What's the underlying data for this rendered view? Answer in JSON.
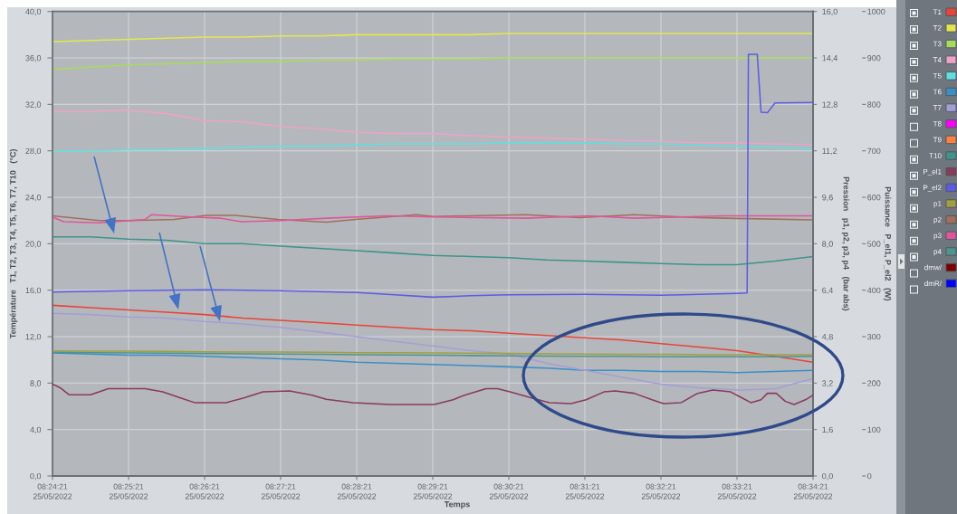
{
  "chart_data": {
    "type": "line",
    "xlabel": "Temps",
    "ylabel": "Température   T1, T2, T3, T4, T5, T6, T7, T10   (°C)",
    "y2label": "Pression   p1, p2, p3, p4   (bar abs)",
    "y3label": "Puissance   P_el1, P_el2   (W)",
    "xlim": [
      "2022-05-25T08:24:21",
      "2022-05-25T08:34:21"
    ],
    "xticks": [
      {
        "value": "2022-05-25T08:24:21",
        "label": "08:24:21\n25/05/2022"
      },
      {
        "value": "2022-05-25T08:25:21",
        "label": "08:25:21\n25/05/2022"
      },
      {
        "value": "2022-05-25T08:26:21",
        "label": "08:26:21\n25/05/2022"
      },
      {
        "value": "2022-05-25T08:27:21",
        "label": "08:27:21\n25/05/2022"
      },
      {
        "value": "2022-05-25T08:28:21",
        "label": "08:28:21\n25/05/2022"
      },
      {
        "value": "2022-05-25T08:29:21",
        "label": "08:29:21\n25/05/2022"
      },
      {
        "value": "2022-05-25T08:30:21",
        "label": "08:30:21\n25/05/2022"
      },
      {
        "value": "2022-05-25T08:31:21",
        "label": "08:31:21\n25/05/2022"
      },
      {
        "value": "2022-05-25T08:32:21",
        "label": "08:32:21\n25/05/2022"
      },
      {
        "value": "2022-05-25T08:33:21",
        "label": "08:33:21\n25/05/2022"
      },
      {
        "value": "2022-05-25T08:34:21",
        "label": "08:34:21\n25/05/2022"
      }
    ],
    "ylim": [
      0,
      40
    ],
    "yticks": [
      {
        "value": 0,
        "label": "0,0"
      },
      {
        "value": 4,
        "label": "4,0"
      },
      {
        "value": 8,
        "label": "8,0"
      },
      {
        "value": 12,
        "label": "12,0"
      },
      {
        "value": 16,
        "label": "16,0"
      },
      {
        "value": 20,
        "label": "20,0"
      },
      {
        "value": 24,
        "label": "24,0"
      },
      {
        "value": 28,
        "label": "28,0"
      },
      {
        "value": 32,
        "label": "32,0"
      },
      {
        "value": 36,
        "label": "36,0"
      },
      {
        "value": 40,
        "label": "40,0"
      }
    ],
    "y2lim": [
      0,
      16
    ],
    "y2ticks": [
      {
        "value": 0,
        "label": "0,0"
      },
      {
        "value": 1.6,
        "label": "1,6"
      },
      {
        "value": 3.2,
        "label": "3,2"
      },
      {
        "value": 4.8,
        "label": "4,8"
      },
      {
        "value": 6.4,
        "label": "6,4"
      },
      {
        "value": 8,
        "label": "8,0"
      },
      {
        "value": 9.6,
        "label": "9,6"
      },
      {
        "value": 11.2,
        "label": "11,2"
      },
      {
        "value": 12.8,
        "label": "12,8"
      },
      {
        "value": 14.4,
        "label": "14,4"
      },
      {
        "value": 16,
        "label": "16,0"
      }
    ],
    "y3lim": [
      0,
      1000
    ],
    "y3ticks": [
      0,
      100,
      200,
      300,
      400,
      500,
      600,
      700,
      800,
      900,
      1000
    ],
    "grid": true,
    "legend": "right",
    "x": [
      "2022-05-25T08:24:21",
      "2022-05-25T08:24:51",
      "2022-05-25T08:25:21",
      "2022-05-25T08:25:51",
      "2022-05-25T08:26:21",
      "2022-05-25T08:26:51",
      "2022-05-25T08:27:21",
      "2022-05-25T08:27:51",
      "2022-05-25T08:28:21",
      "2022-05-25T08:28:51",
      "2022-05-25T08:29:21",
      "2022-05-25T08:29:51",
      "2022-05-25T08:30:21",
      "2022-05-25T08:30:51",
      "2022-05-25T08:31:21",
      "2022-05-25T08:31:51",
      "2022-05-25T08:32:21",
      "2022-05-25T08:32:51",
      "2022-05-25T08:33:21",
      "2022-05-25T08:33:51",
      "2022-05-25T08:34:21"
    ],
    "series": [
      {
        "name": "T1",
        "color": "#e8443a",
        "values": [
          14.7,
          14.5,
          14.3,
          14.1,
          13.9,
          13.6,
          13.4,
          13.2,
          13.0,
          12.8,
          12.6,
          12.5,
          12.3,
          12.1,
          11.9,
          11.7,
          11.4,
          11.1,
          10.8,
          10.3,
          9.8
        ]
      },
      {
        "name": "T2",
        "color": "#e6e64c",
        "values": [
          37.4,
          37.5,
          37.6,
          37.7,
          37.8,
          37.8,
          37.9,
          37.9,
          38.0,
          38.0,
          38.0,
          38.0,
          38.1,
          38.1,
          38.1,
          38.1,
          38.1,
          38.1,
          38.1,
          38.1,
          38.1
        ]
      },
      {
        "name": "T3",
        "color": "#a6dc58",
        "values": [
          35.0,
          35.2,
          35.4,
          35.5,
          35.6,
          35.7,
          35.7,
          35.8,
          35.8,
          35.9,
          35.9,
          35.9,
          36.0,
          36.0,
          36.0,
          36.0,
          36.0,
          36.0,
          36.0,
          36.0,
          36.0
        ]
      },
      {
        "name": "T4",
        "color": "#eea2c6",
        "values": [
          31.4,
          31.4,
          31.5,
          31.2,
          30.6,
          30.5,
          30.1,
          29.9,
          29.6,
          29.5,
          29.5,
          29.3,
          29.2,
          29.1,
          29.0,
          28.9,
          28.8,
          28.7,
          28.7,
          28.6,
          28.5
        ]
      },
      {
        "name": "T5",
        "color": "#5fe0e0",
        "values": [
          28.0,
          28.0,
          28.1,
          28.1,
          28.2,
          28.3,
          28.4,
          28.4,
          28.5,
          28.6,
          28.6,
          28.6,
          28.7,
          28.7,
          28.7,
          28.6,
          28.6,
          28.5,
          28.4,
          28.3,
          28.2
        ]
      },
      {
        "name": "T6",
        "color": "#3a8fc6",
        "values": [
          10.6,
          10.5,
          10.4,
          10.4,
          10.3,
          10.2,
          10.1,
          10.0,
          9.8,
          9.7,
          9.6,
          9.5,
          9.4,
          9.3,
          9.1,
          9.1,
          9.0,
          9.0,
          8.9,
          9.0,
          9.1
        ]
      },
      {
        "name": "T7",
        "color": "#a59dd8",
        "values": [
          14.0,
          13.9,
          13.7,
          13.6,
          13.3,
          13.1,
          12.8,
          12.4,
          12.0,
          11.6,
          11.2,
          10.8,
          10.5,
          9.7,
          9.1,
          8.5,
          7.9,
          7.6,
          7.4,
          7.5,
          8.4
        ]
      },
      {
        "name": "T8",
        "color": "#ff00ff",
        "values": [
          null,
          null,
          null,
          null,
          null,
          null,
          null,
          null,
          null,
          null,
          null,
          null,
          null,
          null,
          null,
          null,
          null,
          null,
          null,
          null,
          null
        ]
      },
      {
        "name": "T9",
        "color": "#ff8040",
        "values": [
          null,
          null,
          null,
          null,
          null,
          null,
          null,
          null,
          null,
          null,
          null,
          null,
          null,
          null,
          null,
          null,
          null,
          null,
          null,
          null,
          null
        ]
      },
      {
        "name": "T10",
        "color": "#3e9488",
        "values": [
          20.6,
          20.6,
          20.4,
          20.3,
          20.0,
          20.0,
          19.8,
          19.6,
          19.4,
          19.2,
          19.0,
          18.9,
          18.8,
          18.6,
          18.5,
          18.4,
          18.3,
          18.2,
          18.2,
          18.5,
          18.9
        ]
      },
      {
        "name": "P_el1",
        "color": "#8a3a5a",
        "axis": "y3",
        "x": [
          "2022-05-25T08:24:21",
          "2022-05-25T08:24:27",
          "2022-05-25T08:24:34",
          "2022-05-25T08:24:51",
          "2022-05-25T08:25:05",
          "2022-05-25T08:25:34",
          "2022-05-25T08:25:48",
          "2022-05-25T08:26:02",
          "2022-05-25T08:26:13",
          "2022-05-25T08:26:38",
          "2022-05-25T08:26:52",
          "2022-05-25T08:27:07",
          "2022-05-25T08:27:28",
          "2022-05-25T08:27:46",
          "2022-05-25T08:27:57",
          "2022-05-25T08:28:18",
          "2022-05-25T08:28:47",
          "2022-05-25T08:29:22",
          "2022-05-25T08:29:37",
          "2022-05-25T08:29:46",
          "2022-05-25T08:30:03",
          "2022-05-25T08:30:12",
          "2022-05-25T08:30:22",
          "2022-05-25T08:30:39",
          "2022-05-25T08:30:53",
          "2022-05-25T08:31:10",
          "2022-05-25T08:31:22",
          "2022-05-25T08:31:36",
          "2022-05-25T08:31:45",
          "2022-05-25T08:32:00",
          "2022-05-25T08:32:14",
          "2022-05-25T08:32:23",
          "2022-05-25T08:32:37",
          "2022-05-25T08:32:50",
          "2022-05-25T08:33:02",
          "2022-05-25T08:33:16",
          "2022-05-25T08:33:25",
          "2022-05-25T08:33:32",
          "2022-05-25T08:33:40",
          "2022-05-25T08:33:45",
          "2022-05-25T08:33:52",
          "2022-05-25T08:33:59",
          "2022-05-25T08:34:06",
          "2022-05-25T08:34:15",
          "2022-05-25T08:34:21"
        ],
        "values": [
          198,
          190,
          175,
          175,
          188,
          188,
          181,
          168,
          158,
          158,
          168,
          181,
          183,
          174,
          165,
          158,
          154,
          154,
          164,
          174,
          188,
          188,
          181,
          168,
          158,
          156,
          164,
          181,
          183,
          178,
          164,
          156,
          158,
          178,
          185,
          181,
          168,
          158,
          164,
          178,
          178,
          161,
          154,
          164,
          174
        ]
      },
      {
        "name": "P_el2",
        "color": "#5b5be6",
        "axis": "y3",
        "x": [
          "2022-05-25T08:24:21",
          "2022-05-25T08:25:21",
          "2022-05-25T08:26:21",
          "2022-05-25T08:27:21",
          "2022-05-25T08:28:21",
          "2022-05-25T08:28:51",
          "2022-05-25T08:29:21",
          "2022-05-25T08:29:51",
          "2022-05-25T08:30:21",
          "2022-05-25T08:31:21",
          "2022-05-25T08:32:21",
          "2022-05-25T08:33:21",
          "2022-05-25T08:33:29",
          "2022-05-25T08:33:30",
          "2022-05-25T08:33:37",
          "2022-05-25T08:33:40",
          "2022-05-25T08:33:45",
          "2022-05-25T08:33:51",
          "2022-05-25T08:34:21"
        ],
        "values": [
          396,
          399,
          401,
          399,
          395,
          390,
          385,
          388,
          390,
          391,
          389,
          393,
          394,
          908,
          908,
          783,
          782,
          803,
          804
        ]
      },
      {
        "name": "p1",
        "color": "#a0a040",
        "axis": "y2",
        "values": [
          4.31,
          4.3,
          4.3,
          4.29,
          4.28,
          4.27,
          4.27,
          4.26,
          4.25,
          4.25,
          4.24,
          4.23,
          4.22,
          4.21,
          4.2,
          4.19,
          4.19,
          4.18,
          4.18,
          4.18,
          4.18
        ]
      },
      {
        "name": "p2",
        "color": "#a0705a",
        "axis": "y2",
        "x": [
          "2022-05-25T08:24:21",
          "2022-05-25T08:24:58",
          "2022-05-25T08:25:22",
          "2022-05-25T08:25:57",
          "2022-05-25T08:26:22",
          "2022-05-25T08:26:45",
          "2022-05-25T08:27:19",
          "2022-05-25T08:27:57",
          "2022-05-25T08:28:20",
          "2022-05-25T08:29:08",
          "2022-05-25T08:29:22",
          "2022-05-25T08:30:34",
          "2022-05-25T08:31:17",
          "2022-05-25T08:32:00",
          "2022-05-25T08:32:50",
          "2022-05-25T08:33:11",
          "2022-05-25T08:34:21"
        ],
        "values": [
          8.96,
          8.8,
          8.8,
          8.84,
          8.98,
          8.98,
          8.84,
          8.74,
          8.84,
          9.0,
          8.94,
          9.0,
          8.9,
          9.0,
          8.9,
          8.88,
          8.82
        ]
      },
      {
        "name": "p3",
        "color": "#e0559c",
        "axis": "y2",
        "x": [
          "2022-05-25T08:24:21",
          "2022-05-25T08:24:30",
          "2022-05-25T08:24:58",
          "2022-05-25T08:25:34",
          "2022-05-25T08:25:39",
          "2022-05-25T08:26:10",
          "2022-05-25T08:26:33",
          "2022-05-25T08:26:50",
          "2022-05-25T08:27:21",
          "2022-05-25T08:27:57",
          "2022-05-25T08:28:45",
          "2022-05-25T08:29:22",
          "2022-05-25T08:30:35",
          "2022-05-25T08:31:24",
          "2022-05-25T08:32:00",
          "2022-05-25T08:33:11",
          "2022-05-25T08:34:21"
        ],
        "values": [
          8.92,
          8.76,
          8.72,
          8.84,
          9.0,
          8.92,
          8.88,
          8.76,
          8.8,
          8.88,
          8.96,
          8.92,
          8.88,
          8.96,
          8.88,
          8.96,
          8.96
        ]
      },
      {
        "name": "p4",
        "color": "#4f9490",
        "axis": "y2",
        "values": [
          4.26,
          4.25,
          4.24,
          4.23,
          4.22,
          4.21,
          4.2,
          4.19,
          4.18,
          4.17,
          4.16,
          4.15,
          4.14,
          4.13,
          4.12,
          4.12,
          4.11,
          4.11,
          4.11,
          4.11,
          4.12
        ]
      },
      {
        "name": "dmw/",
        "color": "#800000",
        "values": [
          null,
          null,
          null,
          null,
          null,
          null,
          null,
          null,
          null,
          null,
          null,
          null,
          null,
          null,
          null,
          null,
          null,
          null,
          null,
          null,
          null
        ]
      },
      {
        "name": "dmR/",
        "color": "#0000ff",
        "values": [
          null,
          null,
          null,
          null,
          null,
          null,
          null,
          null,
          null,
          null,
          null,
          null,
          null,
          null,
          null,
          null,
          null,
          null,
          null,
          null,
          null
        ]
      }
    ]
  }
}
